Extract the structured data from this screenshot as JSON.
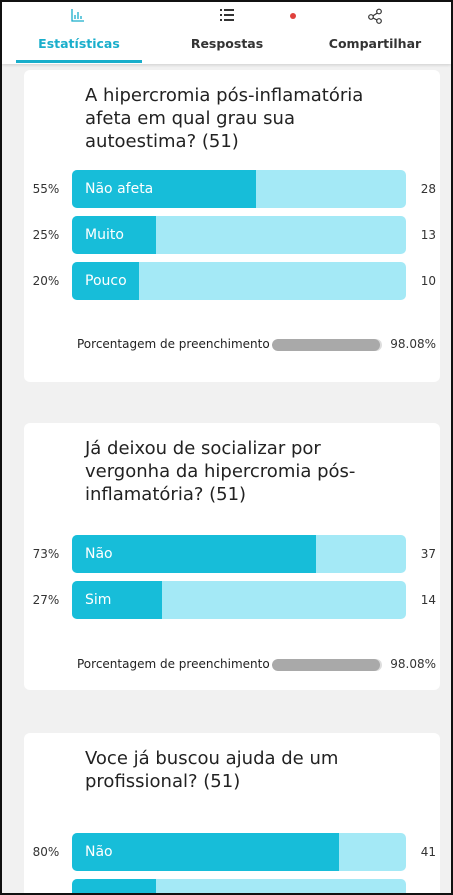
{
  "tabs": [
    {
      "label": "Estatísticas",
      "active": true
    },
    {
      "label": "Respostas",
      "active": false
    },
    {
      "label": "Compartilhar",
      "active": false
    }
  ],
  "questions": [
    {
      "title": "A hipercromia pós-inflamatória afeta em qual grau sua autoestima? (51)",
      "options": [
        {
          "percent": {
            "value": 55,
            "label": "55%"
          },
          "label": "Não afeta",
          "count": 28
        },
        {
          "percent": {
            "value": 25,
            "label": "25%"
          },
          "label": "Muito",
          "count": 13
        },
        {
          "percent": {
            "value": 20,
            "label": "20%"
          },
          "label": "Pouco",
          "count": 10
        }
      ],
      "fill_label": "Porcentagem de preenchimento",
      "fill": {
        "value": 98.08,
        "label": "98.08%"
      }
    },
    {
      "title": "Já deixou de socializar por vergonha da hipercromia pós-inflamatória? (51)",
      "options": [
        {
          "percent": {
            "value": 73,
            "label": "73%"
          },
          "label": "Não",
          "count": 37
        },
        {
          "percent": {
            "value": 27,
            "label": "27%"
          },
          "label": "Sim",
          "count": 14
        }
      ],
      "fill_label": "Porcentagem de preenchimento",
      "fill": {
        "value": 98.08,
        "label": "98.08%"
      }
    },
    {
      "title": "Voce já buscou ajuda de um profissional? (51)",
      "options": [
        {
          "percent": {
            "value": 80,
            "label": "80%"
          },
          "label": "Não",
          "count": 41
        }
      ]
    }
  ]
}
